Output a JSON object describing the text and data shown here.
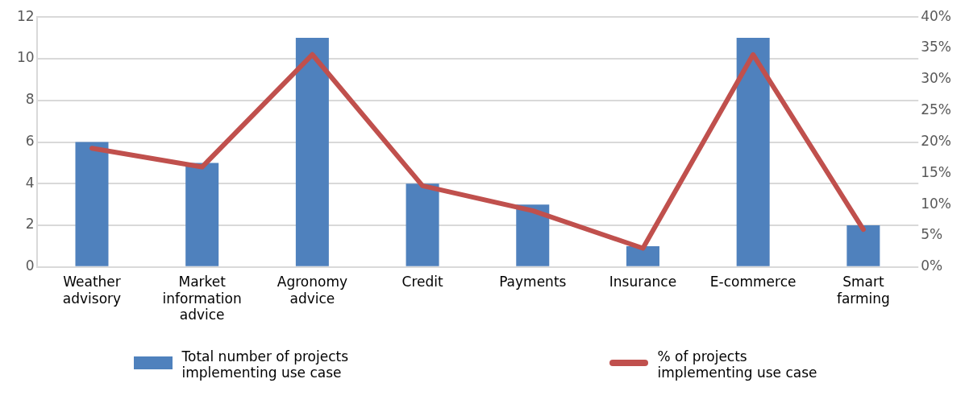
{
  "chart_data": {
    "type": "bar",
    "categories": [
      "Weather advisory",
      "Market information advice",
      "Agronomy advice",
      "Credit",
      "Payments",
      "Insurance",
      "E-commerce",
      "Smart farming"
    ],
    "series": [
      {
        "name": "Total number of projects implementing use case",
        "color": "#4f81bd",
        "values": [
          6,
          5,
          11,
          4,
          3,
          1,
          11,
          2
        ]
      },
      {
        "name": "% of projects implementing use case",
        "type": "line",
        "axis": "y2",
        "color": "#c0504d",
        "values": [
          19,
          16,
          34,
          13,
          9,
          3,
          34,
          6
        ]
      }
    ],
    "ylim": [
      0,
      12
    ],
    "yticks": [
      0,
      2,
      4,
      6,
      8,
      10,
      12
    ],
    "y2lim": [
      0,
      40
    ],
    "y2ticks": [
      {
        "value": 0,
        "label": "0%"
      },
      {
        "value": 5,
        "label": "5%"
      },
      {
        "value": 10,
        "label": "10%"
      },
      {
        "value": 15,
        "label": "15%"
      },
      {
        "value": 20,
        "label": "20%"
      },
      {
        "value": 25,
        "label": "25%"
      },
      {
        "value": 30,
        "label": "30%"
      },
      {
        "value": 35,
        "label": "35%"
      },
      {
        "value": 40,
        "label": "40%"
      }
    ],
    "grid": "y",
    "legend": "bottom",
    "marker": "none"
  }
}
